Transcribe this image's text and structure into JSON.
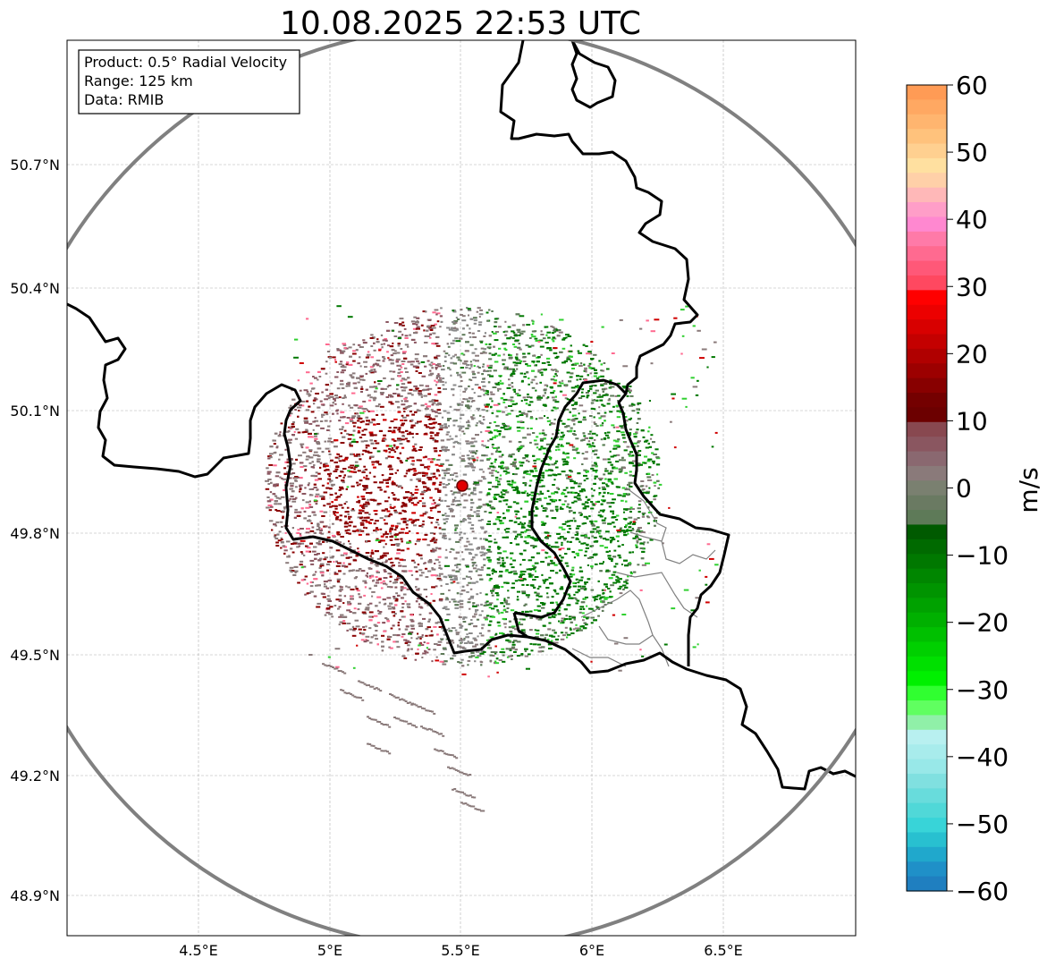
{
  "title": "10.08.2025 22:53 UTC",
  "info_box": {
    "product": "Product: 0.5° Radial Velocity",
    "range": "Range: 125 km",
    "data_source": "Data: RMIB"
  },
  "axes": {
    "lon_ticks": [
      "4.5°E",
      "5°E",
      "5.5°E",
      "6°E",
      "6.5°E"
    ],
    "lat_ticks": [
      "50.7°N",
      "50.4°N",
      "50.1°N",
      "49.8°N",
      "49.5°N",
      "49.2°N",
      "48.9°N"
    ]
  },
  "colorbar": {
    "unit": "m/s",
    "ticks": [
      "60",
      "50",
      "40",
      "30",
      "20",
      "10",
      "0",
      "−10",
      "−20",
      "−30",
      "−40",
      "−50",
      "−60"
    ],
    "min": -60,
    "max": 60,
    "colors_top_to_bottom": [
      "#ff9b55",
      "#ffa862",
      "#ffb56f",
      "#ffc27c",
      "#ffd090",
      "#ffe0a0",
      "#ffd0a8",
      "#ffb8b8",
      "#ff9ec8",
      "#ff88d0",
      "#ff7aa8",
      "#ff6a90",
      "#ff5878",
      "#ff4860",
      "#ff0000",
      "#ec0000",
      "#d80000",
      "#c40000",
      "#b00000",
      "#9c0000",
      "#880000",
      "#740000",
      "#6c0000",
      "#884850",
      "#8a5660",
      "#8a6870",
      "#8a7a7a",
      "#7a8070",
      "#6a7a62",
      "#5e7a58",
      "#005a00",
      "#006a00",
      "#007800",
      "#008600",
      "#009400",
      "#00a200",
      "#00b000",
      "#00c000",
      "#00d000",
      "#00e000",
      "#00f000",
      "#30ff30",
      "#60ff60",
      "#90f0a8",
      "#b8f0f0",
      "#a8ecec",
      "#98e8e8",
      "#80e0e0",
      "#68dcdc",
      "#50d8d8",
      "#38d4d8",
      "#28c0d0",
      "#20a8cc",
      "#1f90c8",
      "#1f7fc0"
    ]
  },
  "map": {
    "radar_site_color": "#e00000",
    "range_ring_color": "#808080",
    "border_color": "#000000",
    "velocity_colors": {
      "inbound": "#007800",
      "inbound_light": "#30d030",
      "outbound": "#8a0000",
      "outbound_light": "#d00000",
      "near_zero": "#8a7a7a",
      "near_zero_green": "#5e7a58",
      "pink": "#ff6a90"
    }
  }
}
